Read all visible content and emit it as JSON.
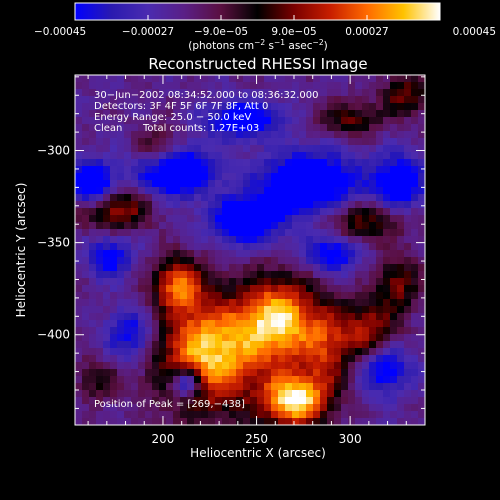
{
  "chart_data": {
    "type": "heatmap",
    "title": "Reconstructed RHESSI Image",
    "xlabel": "Heliocentric X (arcsec)",
    "ylabel": "Heliocentric Y (arcsec)",
    "xlim": [
      153,
      340
    ],
    "ylim": [
      -449,
      -259
    ],
    "x_ticks": [
      200,
      250,
      300
    ],
    "x_tick_labels": [
      "200",
      "250",
      "300"
    ],
    "y_ticks": [
      -300,
      -350,
      -400
    ],
    "y_tick_labels": [
      "−300",
      "−350",
      "−400"
    ],
    "colorbar": {
      "vmin": -0.00045,
      "vmax": 0.00045,
      "ticks": [
        -0.00045,
        -0.00027,
        -9e-05,
        9e-05,
        0.00027,
        0.00045
      ],
      "tick_labels": [
        "−0.00045",
        "−0.00027",
        "−9.0e−05",
        "9.0e−05",
        "0.00027",
        "0.00045"
      ],
      "unit_parts": [
        "(photons cm",
        "−2",
        " s",
        "−1",
        " asec",
        "−2",
        ")"
      ],
      "colormap": [
        "#0000ff",
        "#2a1ab0",
        "#4a2bb0",
        "#5a1f86",
        "#5a0f40",
        "#000000",
        "#7a0000",
        "#c81e00",
        "#ff6a00",
        "#ffc200",
        "#ffffff"
      ]
    },
    "annotations": {
      "lines": [
        "30−Jun−2002 08:34:52.000 to 08:36:32.000",
        "Detectors: 3F 4F 5F 6F 7F 8F, Att 0",
        "Energy Range: 25.0 − 50.0 keV",
        "Clean",
        "Total counts: 1.27E+03"
      ],
      "peak": "Position of Peak = [269,−438]"
    },
    "blobs": [
      {
        "x": 225,
        "y": -410,
        "sx": 20,
        "sy": 22,
        "a": 0.95
      },
      {
        "x": 262,
        "y": -392,
        "sx": 14,
        "sy": 16,
        "a": 0.9
      },
      {
        "x": 270,
        "y": -436,
        "sx": 12,
        "sy": 10,
        "a": 1.0
      },
      {
        "x": 208,
        "y": -372,
        "sx": 9,
        "sy": 10,
        "a": 0.65
      },
      {
        "x": 310,
        "y": -398,
        "sx": 11,
        "sy": 12,
        "a": 0.55
      },
      {
        "x": 326,
        "y": -372,
        "sx": 8,
        "sy": 10,
        "a": 0.45
      },
      {
        "x": 287,
        "y": -408,
        "sx": 10,
        "sy": 18,
        "a": 0.5
      },
      {
        "x": 308,
        "y": -338,
        "sx": 16,
        "sy": 8,
        "a": 0.45
      },
      {
        "x": 330,
        "y": -270,
        "sx": 9,
        "sy": 8,
        "a": 0.45
      },
      {
        "x": 300,
        "y": -283,
        "sx": 12,
        "sy": 7,
        "a": 0.4
      },
      {
        "x": 175,
        "y": -332,
        "sx": 13,
        "sy": 8,
        "a": 0.55
      },
      {
        "x": 198,
        "y": -300,
        "sx": 8,
        "sy": 9,
        "a": 0.45
      },
      {
        "x": 165,
        "y": -425,
        "sx": 8,
        "sy": 8,
        "a": 0.3
      },
      {
        "x": 212,
        "y": -426,
        "sx": 6,
        "sy": 6,
        "a": -0.75
      },
      {
        "x": 206,
        "y": -311,
        "sx": 14,
        "sy": 9,
        "a": -0.85
      },
      {
        "x": 162,
        "y": -318,
        "sx": 8,
        "sy": 8,
        "a": -0.8
      },
      {
        "x": 278,
        "y": -318,
        "sx": 18,
        "sy": 12,
        "a": -0.75
      },
      {
        "x": 244,
        "y": -338,
        "sx": 13,
        "sy": 9,
        "a": -0.7
      },
      {
        "x": 326,
        "y": -318,
        "sx": 10,
        "sy": 11,
        "a": -0.6
      },
      {
        "x": 243,
        "y": -283,
        "sx": 14,
        "sy": 7,
        "a": -0.6
      },
      {
        "x": 318,
        "y": -418,
        "sx": 10,
        "sy": 10,
        "a": -0.55
      },
      {
        "x": 183,
        "y": -400,
        "sx": 9,
        "sy": 10,
        "a": -0.5
      },
      {
        "x": 290,
        "y": -356,
        "sx": 10,
        "sy": 7,
        "a": -0.55
      },
      {
        "x": 172,
        "y": -358,
        "sx": 8,
        "sy": 8,
        "a": -0.5
      }
    ]
  }
}
